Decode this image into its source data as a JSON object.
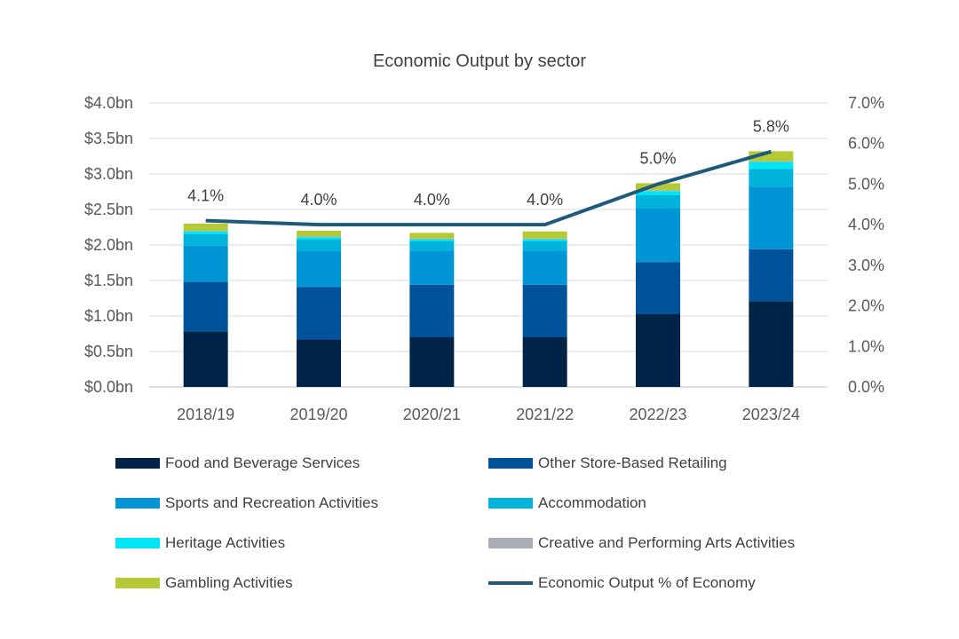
{
  "chart_data": {
    "type": "bar",
    "stacked": true,
    "title": "Economic Output by sector",
    "categories": [
      "2018/19",
      "2019/20",
      "2020/21",
      "2021/22",
      "2022/23",
      "2023/24"
    ],
    "y_left": {
      "ylim": [
        0,
        4.0
      ],
      "ticks": [
        "$0.0bn",
        "$0.5bn",
        "$1.0bn",
        "$1.5bn",
        "$2.0bn",
        "$2.5bn",
        "$3.0bn",
        "$3.5bn",
        "$4.0bn"
      ],
      "unit": "$bn"
    },
    "y_right": {
      "ylim": [
        0,
        7.0
      ],
      "ticks": [
        "0.0%",
        "1.0%",
        "2.0%",
        "3.0%",
        "4.0%",
        "5.0%",
        "6.0%",
        "7.0%"
      ],
      "unit": "%"
    },
    "grid": true,
    "legend_position": "bottom",
    "series": [
      {
        "name": "Food and Beverage Services",
        "color": "#002448",
        "values": [
          0.78,
          0.67,
          0.7,
          0.7,
          1.03,
          1.21
        ]
      },
      {
        "name": "Other Store-Based Retailing",
        "color": "#00529b",
        "values": [
          0.7,
          0.74,
          0.74,
          0.74,
          0.73,
          0.73
        ]
      },
      {
        "name": "Sports and Recreation Activities",
        "color": "#0096d6",
        "values": [
          0.51,
          0.51,
          0.48,
          0.48,
          0.76,
          0.88
        ]
      },
      {
        "name": "Accommodation",
        "color": "#00b4dc",
        "values": [
          0.16,
          0.16,
          0.13,
          0.13,
          0.18,
          0.25
        ]
      },
      {
        "name": "Heritage Activities",
        "color": "#00e5f5",
        "values": [
          0.04,
          0.03,
          0.03,
          0.03,
          0.06,
          0.1
        ]
      },
      {
        "name": "Creative and Performing Arts Activities",
        "color": "#a8adb5",
        "values": [
          0.01,
          0.01,
          0.01,
          0.01,
          0.01,
          0.01
        ]
      },
      {
        "name": "Gambling Activities",
        "color": "#b5c935",
        "values": [
          0.1,
          0.08,
          0.08,
          0.1,
          0.1,
          0.14
        ]
      }
    ],
    "line_series": {
      "name": "Economic Output % of Economy",
      "color": "#1f5a7a",
      "axis": "right",
      "values": [
        4.1,
        4.0,
        4.0,
        4.0,
        5.0,
        5.8
      ],
      "labels": [
        "4.1%",
        "4.0%",
        "4.0%",
        "4.0%",
        "5.0%",
        "5.8%"
      ]
    }
  }
}
